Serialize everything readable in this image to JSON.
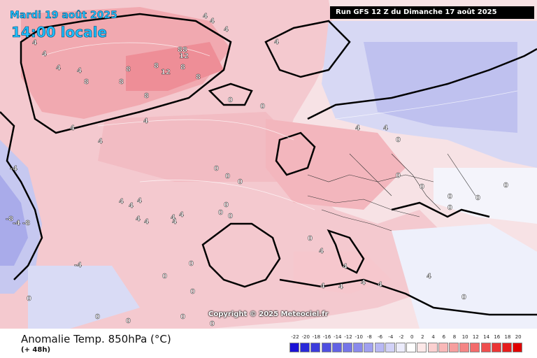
{
  "header": {
    "date": "Mardi 19 août 2025",
    "time": "14:00 locale",
    "run": "Run GFS 12 Z du Dimanche 17 août 2025"
  },
  "footer": {
    "variable": "Anomalie Temp. 850hPa (°C)",
    "lead": "(+ 48h)",
    "copyright": "Copyright © 2025 Meteociel.fr"
  },
  "legend": {
    "ticks": [
      "-22",
      "-20",
      "-18",
      "-16",
      "-14",
      "-12",
      "-10",
      "-8",
      "-6",
      "-4",
      "-2",
      "0",
      "2",
      "4",
      "6",
      "8",
      "10",
      "12",
      "14",
      "16",
      "18",
      "20"
    ],
    "colors": [
      "#1b12d6",
      "#2a2ad9",
      "#3c3cdc",
      "#4f4fe0",
      "#6262e4",
      "#7676e8",
      "#8a8aec",
      "#a0a0f0",
      "#b8b8f4",
      "#d2d2f8",
      "#ececfc",
      "#ffffff",
      "#fde8e8",
      "#fbd0d0",
      "#f9b8b8",
      "#f79e9e",
      "#f58585",
      "#f36b6b",
      "#ef4f4f",
      "#eb3535",
      "#e61c1c",
      "#e00000"
    ]
  },
  "map_labels": [
    {
      "text": "4"
    },
    {
      "text": "4"
    },
    {
      "text": "4"
    },
    {
      "text": "4"
    },
    {
      "text": "8"
    },
    {
      "text": "8"
    },
    {
      "text": "8"
    },
    {
      "text": "8"
    },
    {
      "text": "8"
    },
    {
      "text": "8"
    },
    {
      "text": "88"
    },
    {
      "text": "12"
    },
    {
      "text": "12"
    },
    {
      "text": "8"
    },
    {
      "text": "4"
    },
    {
      "text": "4"
    },
    {
      "text": "4"
    },
    {
      "text": "4"
    },
    {
      "text": "4"
    },
    {
      "text": "4"
    },
    {
      "text": "4"
    },
    {
      "text": "0"
    },
    {
      "text": "0"
    },
    {
      "text": "0"
    },
    {
      "text": "0"
    },
    {
      "text": "0"
    },
    {
      "text": "0"
    },
    {
      "text": "0"
    },
    {
      "text": "0"
    },
    {
      "text": "0"
    },
    {
      "text": "4"
    },
    {
      "text": "4"
    },
    {
      "text": "4"
    },
    {
      "text": "4"
    },
    {
      "text": "4"
    },
    {
      "text": "4"
    },
    {
      "text": "4"
    },
    {
      "text": "4"
    },
    {
      "text": "-4"
    },
    {
      "text": "-8"
    },
    {
      "text": "-8"
    },
    {
      "text": "-4"
    },
    {
      "text": "-4"
    },
    {
      "text": "4"
    },
    {
      "text": "4"
    },
    {
      "text": "0"
    },
    {
      "text": "0"
    },
    {
      "text": "0"
    },
    {
      "text": "0"
    },
    {
      "text": "0"
    },
    {
      "text": "0"
    },
    {
      "text": "0"
    },
    {
      "text": "0"
    },
    {
      "text": "4"
    },
    {
      "text": "4"
    },
    {
      "text": "4"
    },
    {
      "text": "4"
    },
    {
      "text": "4"
    },
    {
      "text": "4"
    },
    {
      "text": "0"
    },
    {
      "text": "0"
    },
    {
      "text": "0"
    },
    {
      "text": "0"
    },
    {
      "text": "0"
    },
    {
      "text": "0"
    },
    {
      "text": "4"
    },
    {
      "text": "0"
    },
    {
      "text": "0"
    }
  ]
}
